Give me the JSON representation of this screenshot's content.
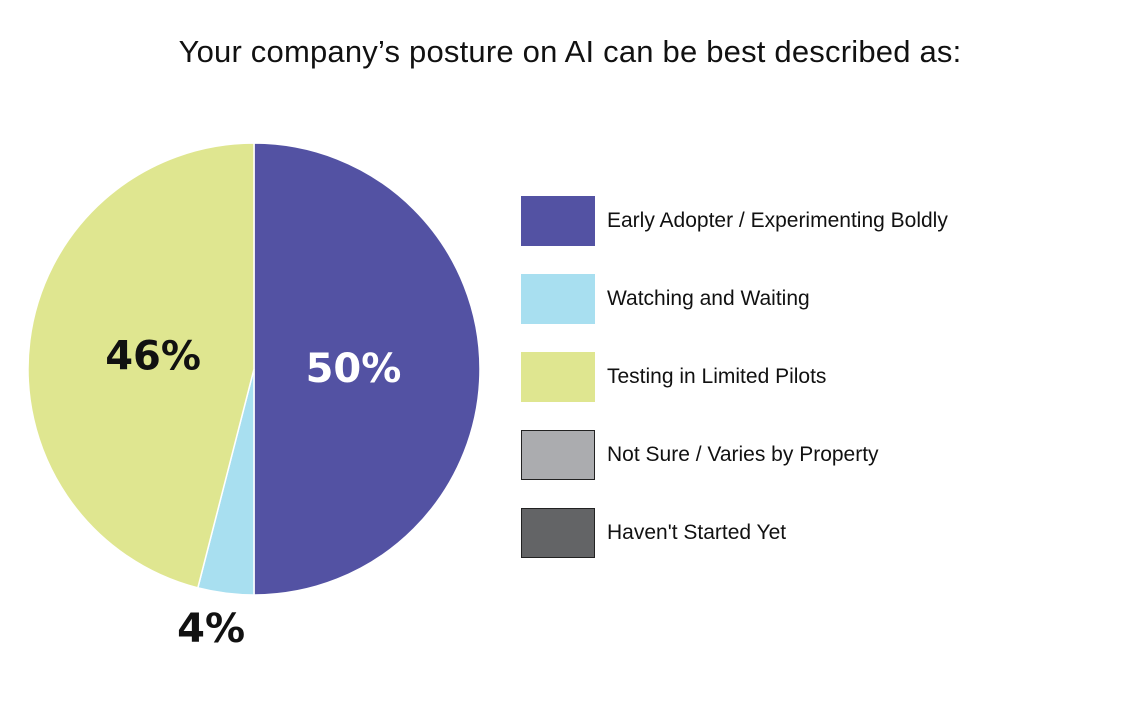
{
  "chart_data": {
    "type": "pie",
    "title": "Your company’s posture on AI can be best described as:",
    "slices": [
      {
        "name": "Early Adopter / Experimenting Boldly",
        "value": 50,
        "label": "50%",
        "color": "#5352a3"
      },
      {
        "name": "Watching and Waiting",
        "value": 4,
        "label": "4%",
        "color": "#a8dff0"
      },
      {
        "name": "Testing in Limited Pilots",
        "value": 46,
        "label": "46%",
        "color": "#dfe690"
      },
      {
        "name": "Not Sure / Varies by Property",
        "value": 0,
        "label": "",
        "color": "#abacaf"
      },
      {
        "name": "Haven't Started Yet",
        "value": 0,
        "label": "",
        "color": "#636466"
      }
    ],
    "legend": {
      "placement": "right",
      "entries": [
        "Early Adopter / Experimenting Boldly",
        "Watching and Waiting",
        "Testing in Limited Pilots",
        "Not Sure / Varies by Property",
        "Haven't Started Yet"
      ]
    }
  }
}
